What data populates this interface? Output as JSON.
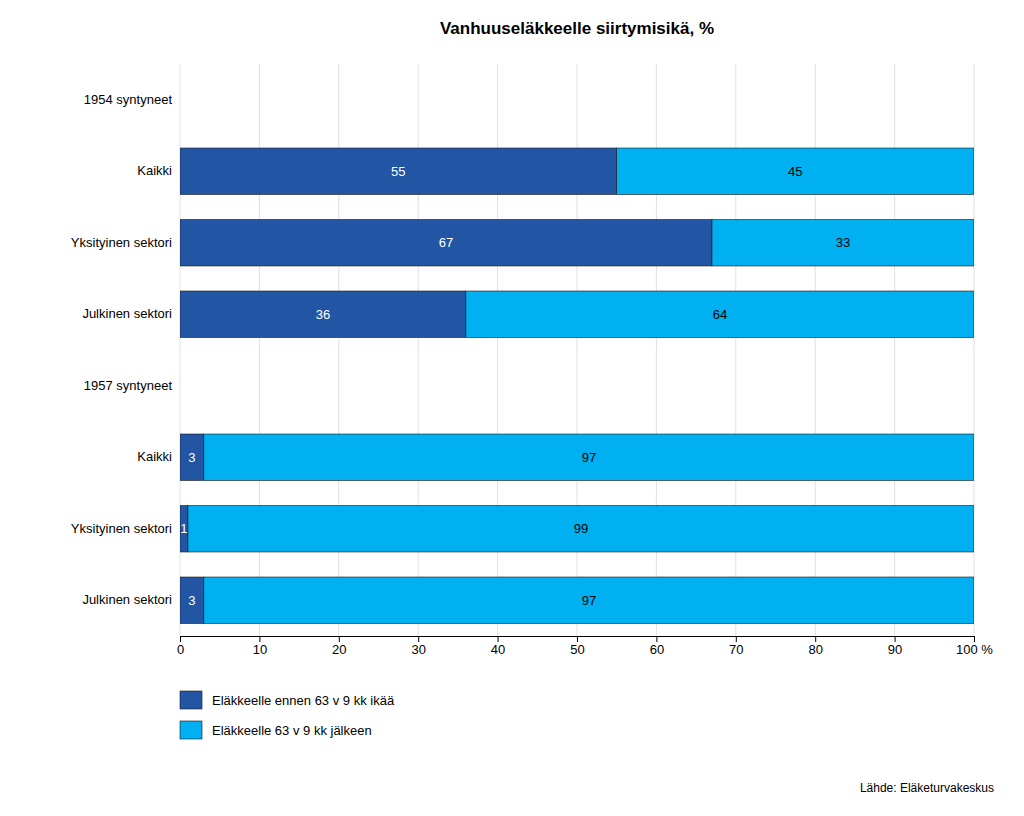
{
  "chart_data": {
    "type": "bar",
    "orientation": "horizontal",
    "stacked": true,
    "title": "Vanhuuseläkkeelle siirtymisikä, %",
    "categories": [
      "1954 syntyneet",
      "Kaikki",
      "Yksityinen sektori",
      "Julkinen sektori",
      "1957 syntyneet",
      "Kaikki",
      "Yksityinen sektori",
      "Julkinen sektori"
    ],
    "series": [
      {
        "name": "Eläkkeelle ennen 63 v 9 kk ikää",
        "color": "#2255a4",
        "values": [
          null,
          55,
          67,
          36,
          null,
          3,
          1,
          3
        ]
      },
      {
        "name": "Eläkkeelle 63 v 9 kk jälkeen",
        "color": "#00b0f0",
        "values": [
          null,
          45,
          33,
          64,
          null,
          97,
          99,
          97
        ]
      }
    ],
    "xlim": [
      0,
      100
    ],
    "xticks": [
      0,
      10,
      20,
      30,
      40,
      50,
      60,
      70,
      80,
      90,
      {
        "value": 100,
        "label": "100 %"
      }
    ],
    "grid": true,
    "legend": "bottom",
    "data_labels": true,
    "annotations": [
      "Lähde: Eläketurvakeskus"
    ]
  }
}
